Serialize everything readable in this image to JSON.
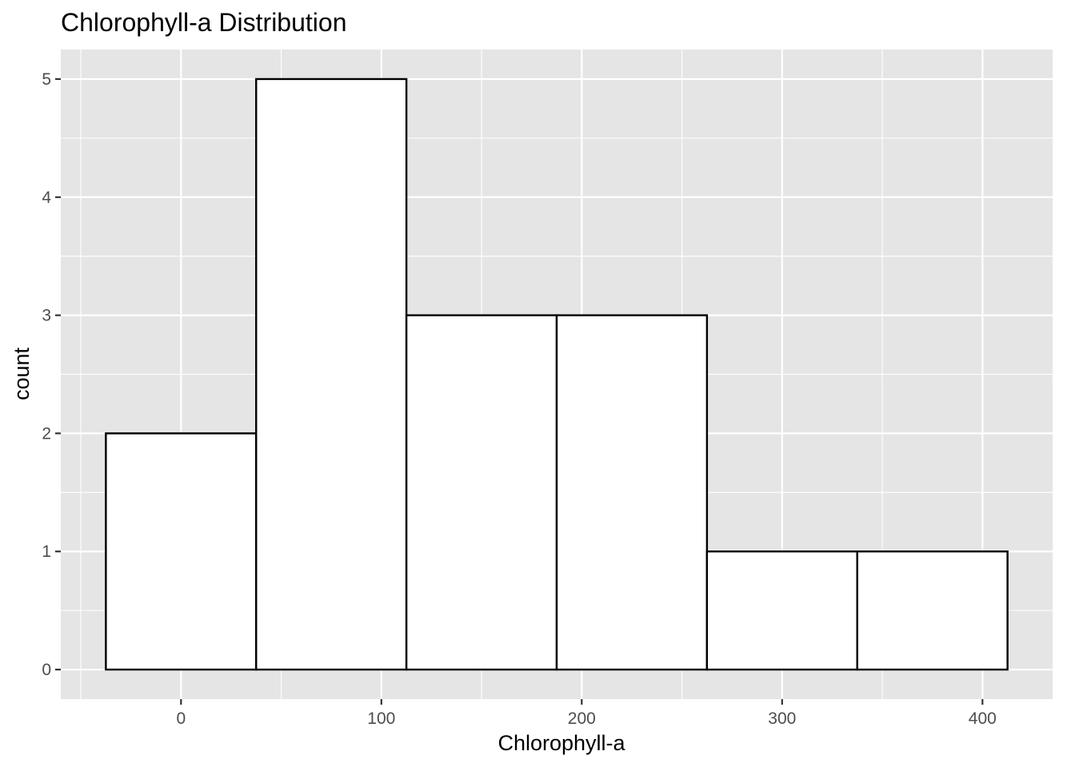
{
  "chart_data": {
    "type": "bar",
    "subtype": "histogram",
    "title": "Chlorophyll-a Distribution",
    "xlabel": "Chlorophyll-a",
    "ylabel": "count",
    "bins": [
      {
        "x_min": -37.5,
        "x_max": 37.5,
        "count": 2
      },
      {
        "x_min": 37.5,
        "x_max": 112.5,
        "count": 5
      },
      {
        "x_min": 112.5,
        "x_max": 187.5,
        "count": 3
      },
      {
        "x_min": 187.5,
        "x_max": 262.5,
        "count": 3
      },
      {
        "x_min": 262.5,
        "x_max": 337.5,
        "count": 1
      },
      {
        "x_min": 337.5,
        "x_max": 412.5,
        "count": 1
      }
    ],
    "xlim": [
      -60,
      435
    ],
    "ylim": [
      -0.25,
      5.25
    ],
    "x_ticks": [
      0,
      100,
      200,
      300,
      400
    ],
    "x_minor_ticks": [
      -50,
      50,
      150,
      250,
      350
    ],
    "y_ticks": [
      0,
      1,
      2,
      3,
      4,
      5
    ],
    "y_minor_ticks": [
      0.5,
      1.5,
      2.5,
      3.5,
      4.5
    ],
    "grid": true,
    "legend": "none",
    "colors": {
      "panel_background": "#e5e5e5",
      "grid_line": "#ffffff",
      "bar_fill": "#ffffff",
      "bar_outline": "#000000",
      "tick_mark": "#333333",
      "tick_label": "#4d4d4d"
    }
  }
}
